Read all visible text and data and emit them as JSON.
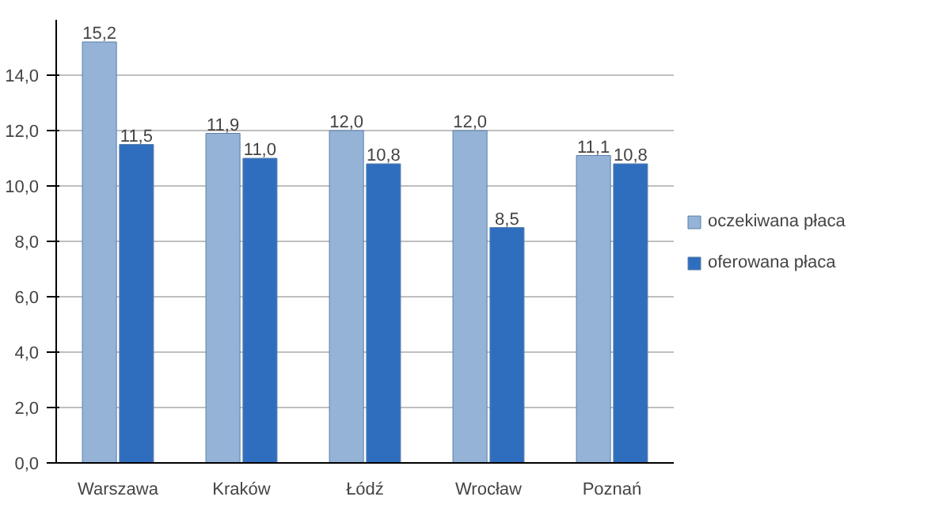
{
  "chart_data": {
    "type": "bar",
    "categories": [
      "Warszawa",
      "Kraków",
      "Łódź",
      "Wrocław",
      "Poznań"
    ],
    "series": [
      {
        "name": "oczekiwana płaca",
        "color": "#95b3d7",
        "values": [
          15.2,
          11.9,
          12.0,
          12.0,
          11.1
        ],
        "value_labels": [
          "15,2",
          "11,9",
          "12,0",
          "12,0",
          "11,1"
        ]
      },
      {
        "name": "oferowana płaca",
        "color": "#2f6ebf",
        "values": [
          11.5,
          11.0,
          10.8,
          8.5,
          10.8
        ],
        "value_labels": [
          "11,5",
          "11,0",
          "10,8",
          "8,5",
          "10,8"
        ]
      }
    ],
    "ylim": [
      0,
      16
    ],
    "yticks": [
      {
        "value": 0,
        "label": "0,0"
      },
      {
        "value": 2,
        "label": "2,0"
      },
      {
        "value": 4,
        "label": "4,0"
      },
      {
        "value": 6,
        "label": "6,0"
      },
      {
        "value": 8,
        "label": "8,0"
      },
      {
        "value": 10,
        "label": "10,0"
      },
      {
        "value": 12,
        "label": "12,0"
      },
      {
        "value": 14,
        "label": "14,0"
      }
    ],
    "grid": "y",
    "legend": "right"
  }
}
